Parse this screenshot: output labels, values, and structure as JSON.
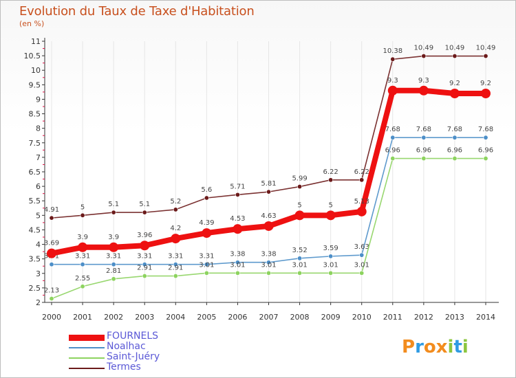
{
  "header": {
    "title": "Evolution du Taux de Taxe d'Habitation",
    "unit": "(en %)"
  },
  "logo": {
    "text": "Proxiti",
    "letters": [
      "P",
      "r",
      "o",
      "x",
      "i",
      "t",
      "i"
    ],
    "colors": [
      "#f28c1e",
      "#2f9be3",
      "#f28c1e",
      "#f28c1e",
      "#8cc63f",
      "#2f9be3",
      "#8cc63f"
    ]
  },
  "chart_data": {
    "type": "line",
    "categories": [
      "2000",
      "2001",
      "2002",
      "2003",
      "2004",
      "2005",
      "2006",
      "2007",
      "2008",
      "2009",
      "2010",
      "2011",
      "2012",
      "2013",
      "2014"
    ],
    "ylim": [
      2,
      11
    ],
    "yticks": [
      "2",
      "2.5",
      "3",
      "3.5",
      "4",
      "4.5",
      "5",
      "5.5",
      "6",
      "6.5",
      "7",
      "7.5",
      "8",
      "8.5",
      "9",
      "9.5",
      "10",
      "10.5",
      "11"
    ],
    "legend_position": "bottom-left",
    "series": [
      {
        "name": "Termes",
        "color": "#6b1a1a",
        "values": [
          4.91,
          5,
          5.1,
          5.1,
          5.2,
          5.6,
          5.71,
          5.81,
          5.99,
          6.22,
          6.22,
          10.38,
          10.49,
          10.49,
          10.49
        ],
        "labels": [
          "4.91",
          "5",
          "5.1",
          "5.1",
          "5.2",
          "5.6",
          "5.71",
          "5.81",
          "5.99",
          "6.22",
          "6.22",
          "10.38",
          "10.49",
          "10.49",
          "10.49"
        ]
      },
      {
        "name": "Noalhac",
        "color": "#4d8fc8",
        "values": [
          3.31,
          3.31,
          3.31,
          3.31,
          3.31,
          3.31,
          3.38,
          3.38,
          3.52,
          3.59,
          3.63,
          7.68,
          7.68,
          7.68,
          7.68
        ],
        "labels": [
          "3.31",
          "3.31",
          "3.31",
          "3.31",
          "3.31",
          "3.31",
          "3.38",
          "3.38",
          "3.52",
          "3.59",
          "3.63",
          "7.68",
          "7.68",
          "7.68",
          "7.68"
        ]
      },
      {
        "name": "Saint-Juéry",
        "color": "#8dd35f",
        "values": [
          2.13,
          2.55,
          2.81,
          2.91,
          2.91,
          3.01,
          3.01,
          3.01,
          3.01,
          3.01,
          3.01,
          6.96,
          6.96,
          6.96,
          6.96
        ],
        "labels": [
          "2.13",
          "2.55",
          "2.81",
          "2.91",
          "2.91",
          "3.01",
          "3.01",
          "3.01",
          "3.01",
          "3.01",
          "3.01",
          "6.96",
          "6.96",
          "6.96",
          "6.96"
        ]
      },
      {
        "name": "FOURNELS",
        "color": "#ee1111",
        "values": [
          3.69,
          3.9,
          3.9,
          3.96,
          4.2,
          4.39,
          4.53,
          4.63,
          5,
          5,
          5.13,
          9.3,
          9.3,
          9.2,
          9.2
        ],
        "labels": [
          "3.69",
          "3.9",
          "3.9",
          "3.96",
          "4.2",
          "4.39",
          "4.53",
          "4.63",
          "5",
          "5",
          "5.13",
          "9.3",
          "9.3",
          "9.2",
          "9.2"
        ]
      }
    ],
    "legend": [
      "FOURNELS",
      "Noalhac",
      "Saint-Juéry",
      "Termes"
    ]
  }
}
